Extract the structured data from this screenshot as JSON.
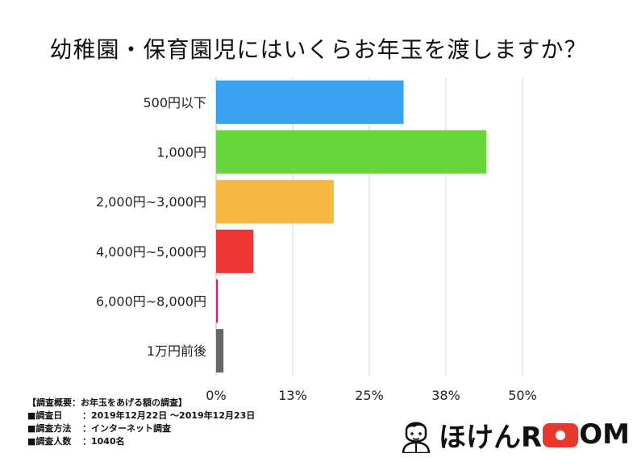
{
  "title": "幼稚園・保育園児にはいくらお年玉を渡しますか？",
  "chart_data": {
    "type": "bar",
    "orientation": "horizontal",
    "categories": [
      "500円以下",
      "1,000円",
      "2,000円~3,000円",
      "4,000円~5,000円",
      "6,000円~8,000円",
      "1万円前後"
    ],
    "values": [
      30.6,
      44.1,
      19.2,
      6.1,
      0.3,
      1.2
    ],
    "colors": [
      "#3aa2f3",
      "#66d63a",
      "#f7b842",
      "#ee3535",
      "#c0287a",
      "#666666"
    ],
    "xlim": [
      0,
      50
    ],
    "ticks": [
      0,
      12.5,
      25,
      37.5,
      50
    ],
    "tick_labels": [
      "0%",
      "13%",
      "25%",
      "38%",
      "50%"
    ],
    "grid": true
  },
  "survey": {
    "heading": "【調査概要：お年玉をあげる額の調査】",
    "rows": [
      {
        "key": "■調査日",
        "value": "：2019年12月22日 〜2019年12月23日"
      },
      {
        "key": "■調査方法",
        "value": "：インターネット調査"
      },
      {
        "key": "■調査人数",
        "value": "：1040名"
      }
    ]
  },
  "brand": {
    "prefix": "ほけんR",
    "suffix": "OM"
  }
}
